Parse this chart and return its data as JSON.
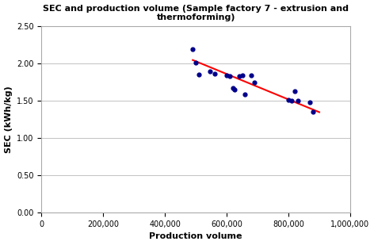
{
  "title": "SEC and production volume (Sample factory 7 - extrusion and\nthermoforming)",
  "xlabel": "Production volume",
  "ylabel": "SEC (kWh/kg)",
  "scatter_x": [
    490000,
    500000,
    510000,
    545000,
    560000,
    600000,
    610000,
    620000,
    625000,
    640000,
    650000,
    660000,
    680000,
    690000,
    800000,
    810000,
    820000,
    830000,
    870000,
    880000
  ],
  "scatter_y": [
    2.2,
    2.01,
    1.86,
    1.9,
    1.87,
    1.85,
    1.83,
    1.67,
    1.65,
    1.83,
    1.85,
    1.59,
    1.84,
    1.75,
    1.51,
    1.5,
    1.63,
    1.5,
    1.48,
    1.35
  ],
  "scatter_color": "#00008B",
  "line_x": [
    490000,
    900000
  ],
  "line_y": [
    2.05,
    1.35
  ],
  "line_color": "#FF0000",
  "xlim": [
    0,
    1000000
  ],
  "ylim": [
    0.0,
    2.5
  ],
  "xticks": [
    0,
    200000,
    400000,
    600000,
    800000,
    1000000
  ],
  "yticks": [
    0.0,
    0.5,
    1.0,
    1.5,
    2.0,
    2.5
  ],
  "title_fontsize": 8,
  "label_fontsize": 8,
  "tick_fontsize": 7,
  "scatter_size": 12,
  "line_width": 1.5
}
